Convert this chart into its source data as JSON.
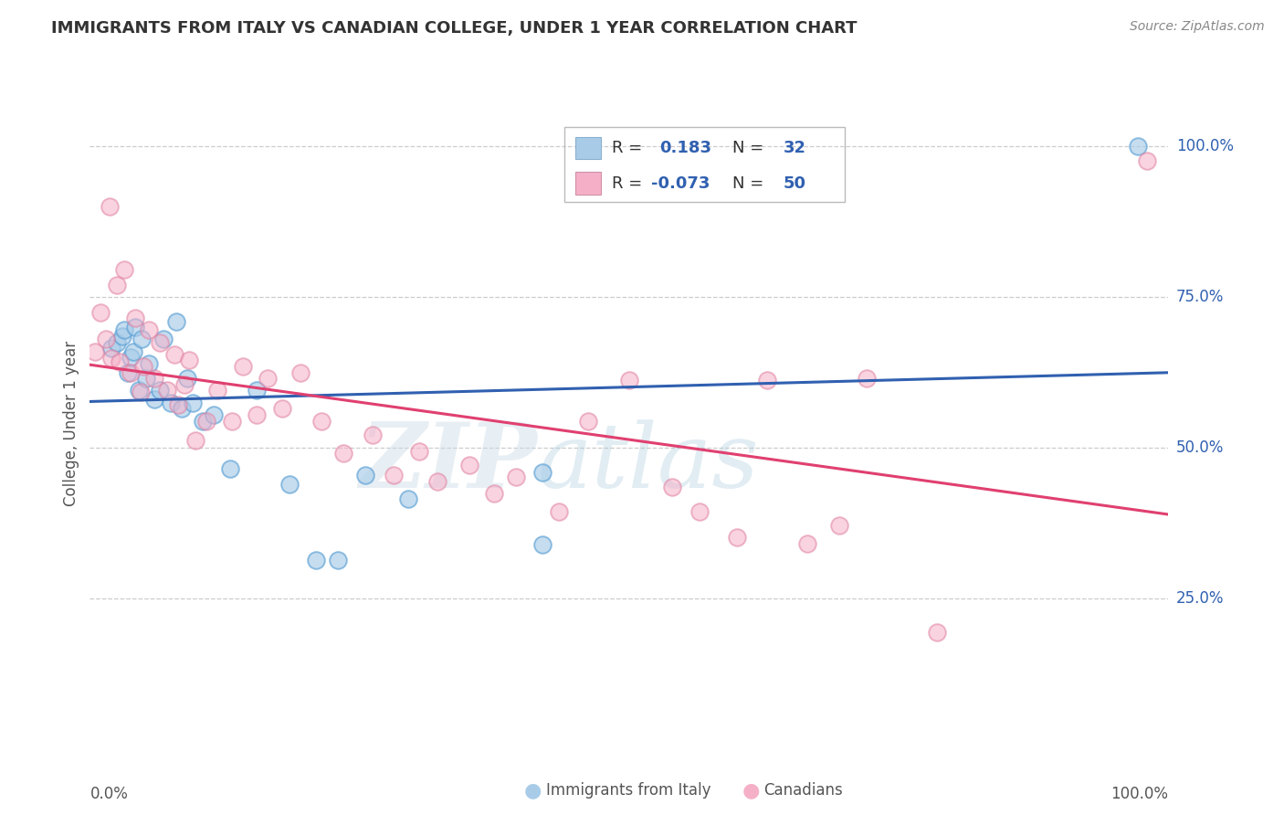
{
  "title": "IMMIGRANTS FROM ITALY VS CANADIAN COLLEGE, UNDER 1 YEAR CORRELATION CHART",
  "source": "Source: ZipAtlas.com",
  "ylabel": "College, Under 1 year",
  "legend_label1": "Immigrants from Italy",
  "legend_label2": "Canadians",
  "r1": "0.183",
  "n1": "32",
  "r2": "-0.073",
  "n2": "50",
  "watermark_zip": "ZIP",
  "watermark_atlas": "atlas",
  "right_ytick_vals": [
    1.0,
    0.75,
    0.5,
    0.25
  ],
  "right_ytick_labels": [
    "100.0%",
    "75.0%",
    "50.0%",
    "25.0%"
  ],
  "blue_fill": "#a8cce8",
  "blue_edge": "#5a9fd4",
  "pink_fill": "#f5b0c8",
  "pink_edge": "#e080a0",
  "blue_line": "#3060b0",
  "pink_line": "#e04070",
  "tick_color": "#3060b0",
  "grid_color": "#cccccc",
  "title_color": "#333333",
  "label_color": "#555555",
  "blue_x": [
    0.02,
    0.025,
    0.03,
    0.032,
    0.035,
    0.038,
    0.04,
    0.042,
    0.045,
    0.048,
    0.052,
    0.055,
    0.06,
    0.065,
    0.068,
    0.075,
    0.08,
    0.085,
    0.09,
    0.095,
    0.105,
    0.115,
    0.13,
    0.155,
    0.185,
    0.21,
    0.23,
    0.255,
    0.295,
    0.42,
    0.42,
    0.972
  ],
  "blue_y": [
    0.665,
    0.675,
    0.685,
    0.695,
    0.625,
    0.65,
    0.66,
    0.7,
    0.595,
    0.68,
    0.615,
    0.64,
    0.58,
    0.595,
    0.68,
    0.575,
    0.71,
    0.565,
    0.615,
    0.575,
    0.545,
    0.555,
    0.465,
    0.595,
    0.44,
    0.315,
    0.315,
    0.455,
    0.415,
    0.46,
    0.34,
    1.0
  ],
  "pink_x": [
    0.005,
    0.01,
    0.015,
    0.018,
    0.02,
    0.025,
    0.028,
    0.032,
    0.038,
    0.042,
    0.047,
    0.05,
    0.055,
    0.06,
    0.065,
    0.072,
    0.078,
    0.082,
    0.088,
    0.092,
    0.098,
    0.108,
    0.118,
    0.132,
    0.142,
    0.155,
    0.165,
    0.178,
    0.195,
    0.215,
    0.235,
    0.262,
    0.282,
    0.305,
    0.322,
    0.352,
    0.375,
    0.395,
    0.435,
    0.462,
    0.5,
    0.54,
    0.565,
    0.6,
    0.628,
    0.665,
    0.695,
    0.72,
    0.785,
    0.98
  ],
  "pink_y": [
    0.66,
    0.725,
    0.68,
    0.9,
    0.648,
    0.77,
    0.642,
    0.795,
    0.625,
    0.715,
    0.592,
    0.635,
    0.695,
    0.615,
    0.675,
    0.595,
    0.655,
    0.572,
    0.605,
    0.645,
    0.512,
    0.545,
    0.595,
    0.545,
    0.635,
    0.555,
    0.615,
    0.565,
    0.625,
    0.545,
    0.492,
    0.522,
    0.455,
    0.495,
    0.445,
    0.472,
    0.425,
    0.452,
    0.395,
    0.545,
    0.612,
    0.435,
    0.395,
    0.352,
    0.612,
    0.342,
    0.372,
    0.615,
    0.195,
    0.975
  ]
}
